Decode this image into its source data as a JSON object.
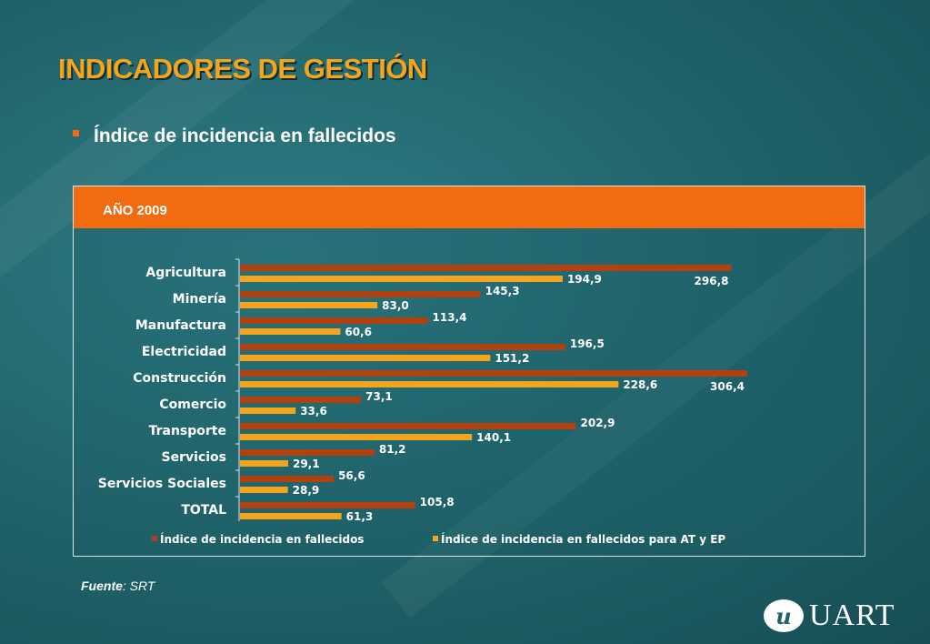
{
  "page": {
    "title": "INDICADORES DE GESTIÓN",
    "subtitle": "Índice de incidencia en fallecidos",
    "panel_header": "AÑO 2009",
    "source_label": "Fuente",
    "source_value": ": SRT",
    "logo_mark": "u",
    "logo_text": "UART"
  },
  "colors": {
    "accent": "#f36b10",
    "title": "#f5a41c",
    "series1": "#b3400f",
    "series2": "#f5a41c"
  },
  "chart_data": {
    "type": "bar",
    "orientation": "horizontal",
    "categories": [
      "Agricultura",
      "Minería",
      "Manufactura",
      "Electricidad",
      "Construcción",
      "Comercio",
      "Transporte",
      "Servicios",
      "Servicios Sociales",
      "TOTAL"
    ],
    "series": [
      {
        "name": "Índice de incidencia en fallecidos",
        "values": [
          296.8,
          145.3,
          113.4,
          196.5,
          306.4,
          73.1,
          202.9,
          81.2,
          56.6,
          105.8
        ],
        "labels": [
          "296,8",
          "145,3",
          "113,4",
          "196,5",
          "306,4",
          "73,1",
          "202,9",
          "81,2",
          "56,6",
          "105,8"
        ]
      },
      {
        "name": "Índice de incidencia en fallecidos para AT y EP",
        "values": [
          194.9,
          83.0,
          60.6,
          151.2,
          228.6,
          33.6,
          140.1,
          29.1,
          28.9,
          61.3
        ],
        "labels": [
          "194,9",
          "83,0",
          "60,6",
          "151,2",
          "228,6",
          "33,6",
          "140,1",
          "29,1",
          "28,9",
          "61,3"
        ]
      }
    ],
    "xlim": [
      0,
      306.4
    ],
    "legend_position": "bottom",
    "grid": false
  }
}
